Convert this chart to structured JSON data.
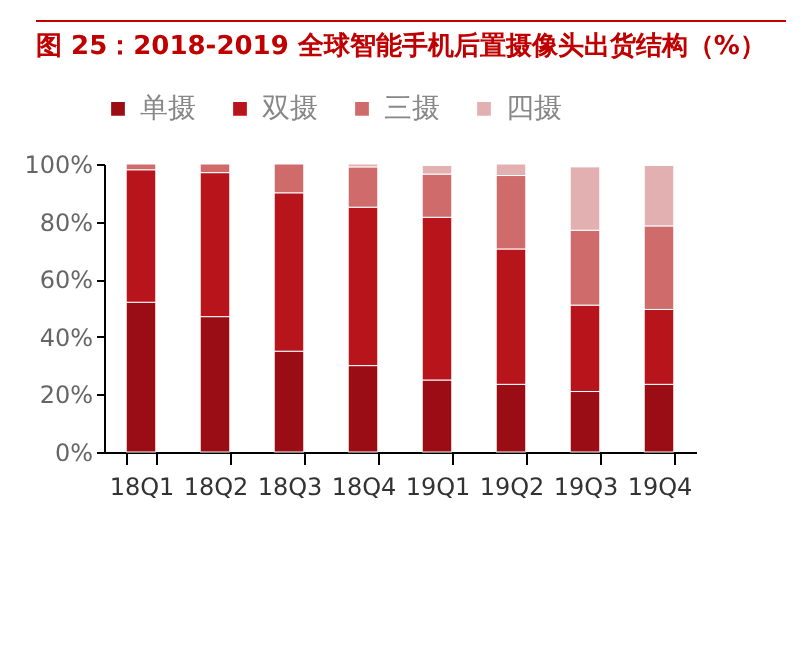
{
  "chart_data": {
    "type": "bar",
    "title": "图 25：2018-2019 全球智能手机后置摄像头出货结构（%）",
    "categories": [
      "18Q1",
      "18Q2",
      "18Q3",
      "18Q4",
      "19Q1",
      "19Q2",
      "19Q3",
      "19Q4"
    ],
    "series": [
      {
        "name": "单摄",
        "color": "#9b0d14",
        "values": [
          52,
          47,
          35,
          30,
          25,
          23.5,
          21,
          23.5
        ]
      },
      {
        "name": "双摄",
        "color": "#b8141b",
        "values": [
          46,
          50,
          55,
          55,
          56.5,
          47,
          30,
          26
        ]
      },
      {
        "name": "三摄",
        "color": "#d06b6b",
        "values": [
          2,
          3,
          10,
          14,
          15,
          25.5,
          26,
          29
        ]
      },
      {
        "name": "四摄",
        "color": "#e3b0b2",
        "values": [
          null,
          null,
          null,
          1,
          3,
          4,
          22,
          21
        ]
      }
    ],
    "stacked": true,
    "ylim": [
      0,
      100
    ],
    "yticks": [
      {
        "value": 0,
        "label": "0%"
      },
      {
        "value": 20,
        "label": "20%"
      },
      {
        "value": 40,
        "label": "40%"
      },
      {
        "value": 60,
        "label": "60%"
      },
      {
        "value": 80,
        "label": "80%"
      },
      {
        "value": 100,
        "label": "100%"
      }
    ],
    "grid": false,
    "legend": "top"
  }
}
